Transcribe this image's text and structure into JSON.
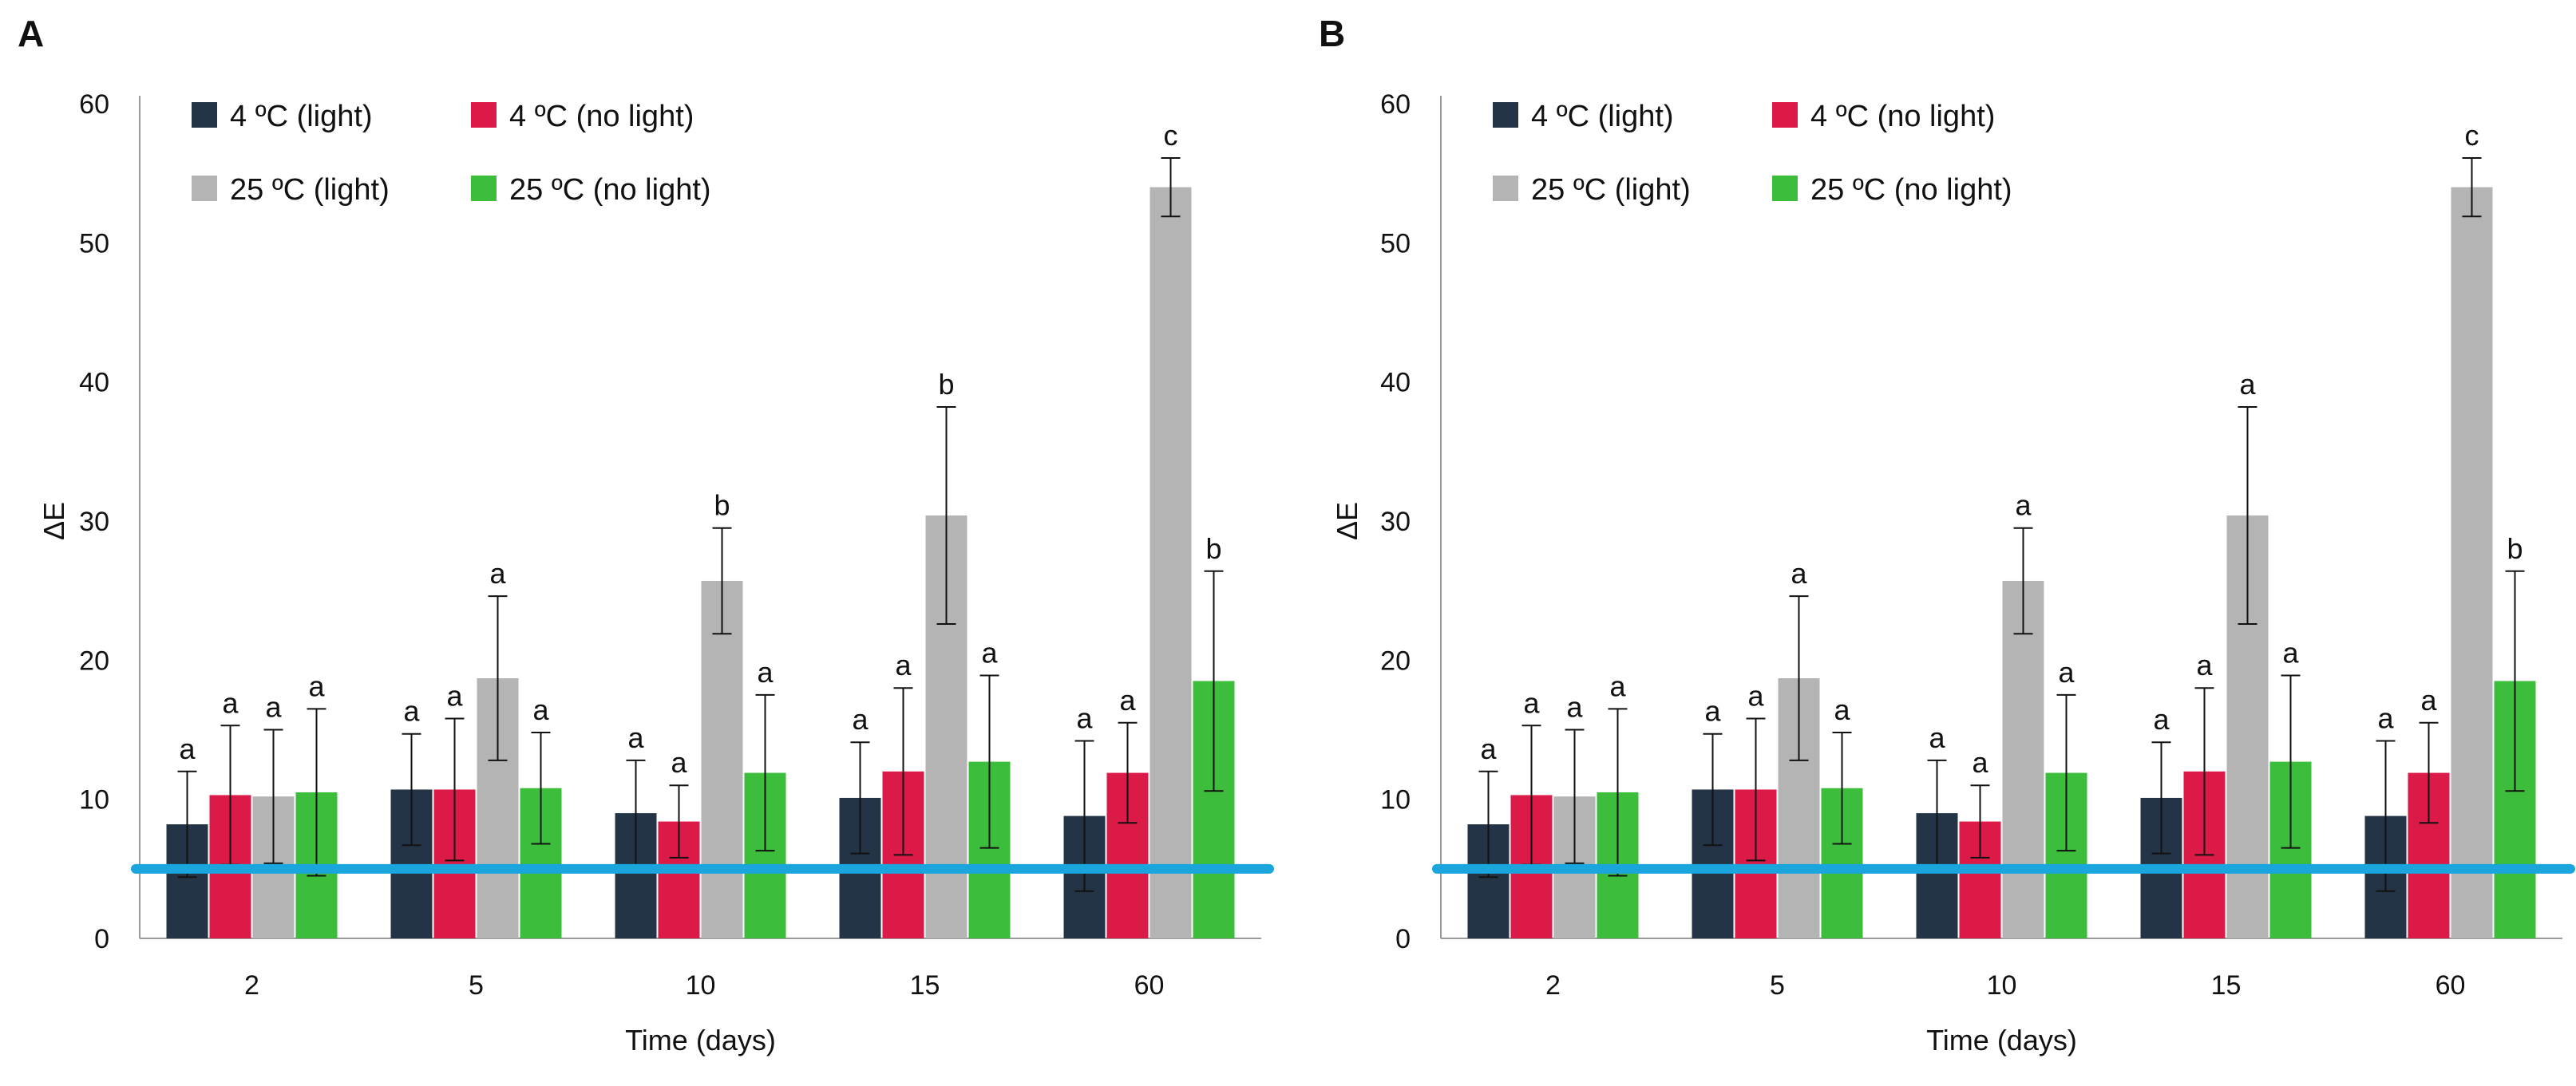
{
  "colors": {
    "series": [
      "#243447",
      "#dc1a48",
      "#b4b4b4",
      "#3cbe3c"
    ],
    "threshold": "#1aa5dc",
    "axis": "#9a9a9a",
    "error": "#111111"
  },
  "chart_data": [
    {
      "panel": "A",
      "type": "bar",
      "xlabel": "Time (days)",
      "ylabel": "ΔE",
      "ylim": [
        0,
        60
      ],
      "yticks": [
        "0",
        "10",
        "20",
        "30",
        "40",
        "50",
        "60"
      ],
      "categories": [
        "2",
        "5",
        "10",
        "15",
        "60"
      ],
      "legend_position": "top-left",
      "threshold_line": 5,
      "series": [
        {
          "name": "4 ºC (light)",
          "values": [
            8.2,
            10.7,
            9.0,
            10.1,
            8.8
          ],
          "errors": [
            3.8,
            4.0,
            3.8,
            4.0,
            5.4
          ],
          "labels": [
            "a",
            "a",
            "a",
            "a",
            "a"
          ]
        },
        {
          "name": "4 ºC (no light)",
          "values": [
            10.3,
            10.7,
            8.4,
            12.0,
            11.9
          ],
          "errors": [
            5.0,
            5.1,
            2.6,
            6.0,
            3.6
          ],
          "labels": [
            "a",
            "a",
            "a",
            "a",
            "a"
          ]
        },
        {
          "name": "25 ºC (light)",
          "values": [
            10.2,
            18.7,
            25.7,
            30.4,
            54.0
          ],
          "errors": [
            4.8,
            5.9,
            3.8,
            7.8,
            2.1
          ],
          "labels": [
            "a",
            "a",
            "b",
            "b",
            "c"
          ]
        },
        {
          "name": "25 ºC (no light)",
          "values": [
            10.5,
            10.8,
            11.9,
            12.7,
            18.5
          ],
          "errors": [
            6.0,
            4.0,
            5.6,
            6.2,
            7.9
          ],
          "labels": [
            "a",
            "a",
            "a",
            "a",
            "b"
          ]
        }
      ]
    },
    {
      "panel": "B",
      "type": "bar",
      "xlabel": "Time (days)",
      "ylabel": "ΔE",
      "ylim": [
        0,
        60
      ],
      "yticks": [
        "0",
        "10",
        "20",
        "30",
        "40",
        "50",
        "60"
      ],
      "categories": [
        "2",
        "5",
        "10",
        "15",
        "60"
      ],
      "legend_position": "top-left",
      "threshold_line": 5,
      "series": [
        {
          "name": "4 ºC (light)",
          "values": [
            8.2,
            10.7,
            9.0,
            10.1,
            8.8
          ],
          "errors": [
            3.8,
            4.0,
            3.8,
            4.0,
            5.4
          ],
          "labels": [
            "a",
            "a",
            "a",
            "a",
            "a"
          ]
        },
        {
          "name": "4 ºC (no light)",
          "values": [
            10.3,
            10.7,
            8.4,
            12.0,
            11.9
          ],
          "errors": [
            5.0,
            5.1,
            2.6,
            6.0,
            3.6
          ],
          "labels": [
            "a",
            "a",
            "a",
            "a",
            "a"
          ]
        },
        {
          "name": "25 ºC (light)",
          "values": [
            10.2,
            18.7,
            25.7,
            30.4,
            54.0
          ],
          "errors": [
            4.8,
            5.9,
            3.8,
            7.8,
            2.1
          ],
          "labels": [
            "a",
            "a",
            "a",
            "a",
            "c"
          ]
        },
        {
          "name": "25 ºC (no light)",
          "values": [
            10.5,
            10.8,
            11.9,
            12.7,
            18.5
          ],
          "errors": [
            6.0,
            4.0,
            5.6,
            6.2,
            7.9
          ],
          "labels": [
            "a",
            "a",
            "a",
            "a",
            "b"
          ]
        }
      ]
    }
  ]
}
